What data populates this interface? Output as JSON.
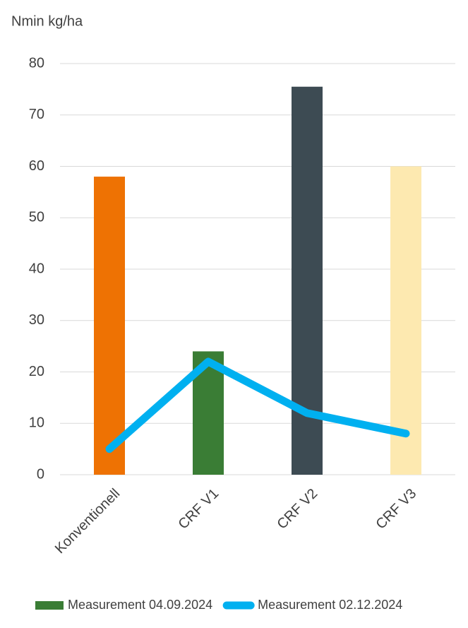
{
  "chart_data": {
    "type": "bar",
    "y_label": "Nmin kg/ha",
    "categories": [
      "Konventionell",
      "CRF V1",
      "CRF V2",
      "CRF V3"
    ],
    "series": [
      {
        "name": "Measurement 04.09.2024",
        "type": "bar",
        "color": "#3a7d35",
        "colors": [
          "#ee7203",
          "#3a7d35",
          "#3d4b53",
          "#fde9b0"
        ],
        "values": [
          58,
          24,
          75.5,
          60
        ]
      },
      {
        "name": "Measurement 02.12.2024",
        "type": "line",
        "color": "#00b0f0",
        "values": [
          5,
          22,
          12,
          8
        ]
      }
    ],
    "ylim": [
      0,
      80
    ],
    "yticks": [
      0,
      10,
      20,
      30,
      40,
      50,
      60,
      70,
      80
    ],
    "grid": true,
    "legend": "bottom"
  }
}
